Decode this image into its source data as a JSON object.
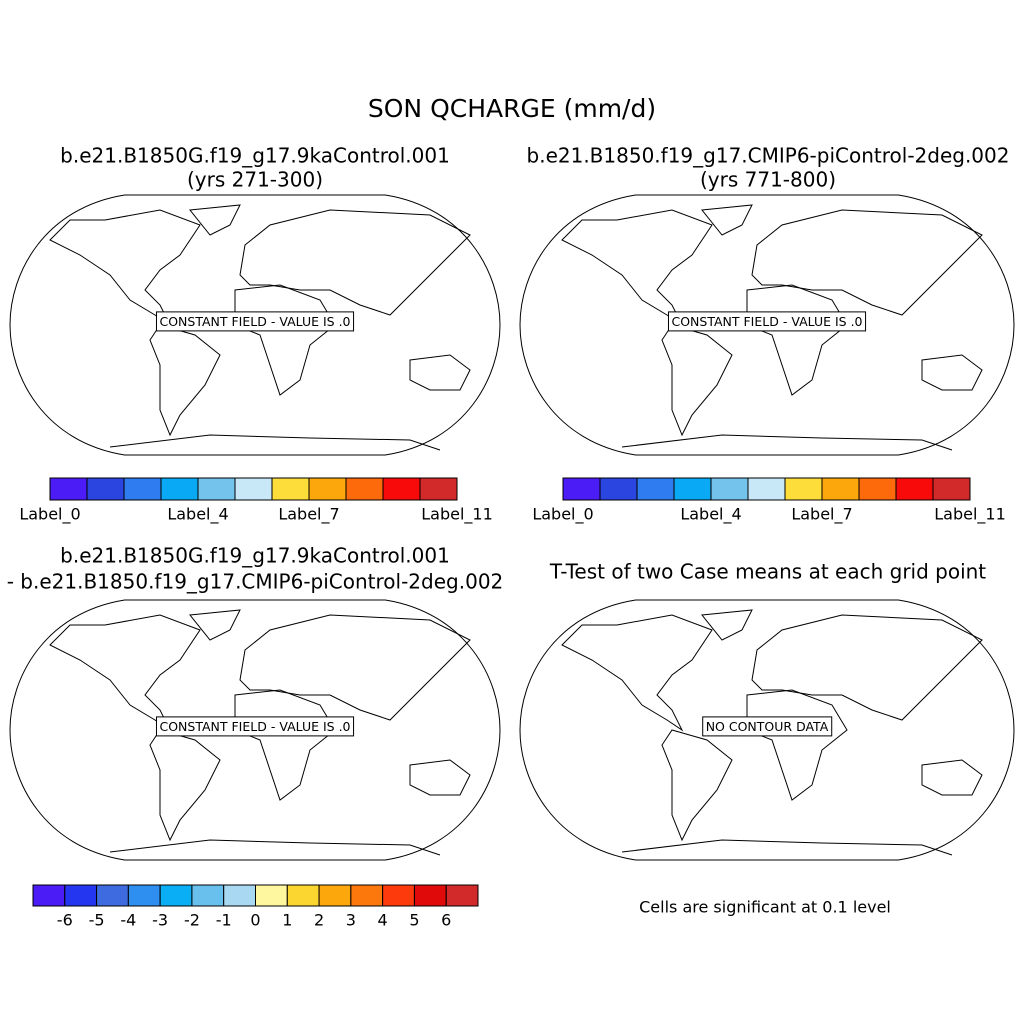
{
  "title": "SON QCHARGE (mm/d)",
  "panels": [
    {
      "title_lines": [
        "b.e21.B1850G.f19_g17.9kaControl.001",
        "(yrs 271-300)"
      ],
      "map_label": "CONSTANT FIELD - VALUE IS .0"
    },
    {
      "title_lines": [
        "b.e21.B1850.f19_g17.CMIP6-piControl-2deg.002",
        "(yrs 771-800)"
      ],
      "map_label": "CONSTANT FIELD - VALUE IS .0"
    },
    {
      "title_lines": [
        "b.e21.B1850G.f19_g17.9kaControl.001",
        "- b.e21.B1850.f19_g17.CMIP6-piControl-2deg.002"
      ],
      "map_label": "CONSTANT FIELD - VALUE IS .0"
    },
    {
      "title_lines": [
        "T-Test of two Case means at each grid point"
      ],
      "map_label": "NO CONTOUR DATA"
    }
  ],
  "colorbars": [
    {
      "colors": [
        "#4b1cf5",
        "#2b45e0",
        "#2f7bf0",
        "#0aa9f5",
        "#74c3ec",
        "#c8e8f8",
        "#fcdd3a",
        "#fca80c",
        "#fc6a0c",
        "#f80a0a",
        "#d22a2a"
      ],
      "labels": [
        "Label_0",
        null,
        null,
        null,
        "Label_4",
        null,
        null,
        "Label_7",
        null,
        null,
        null,
        "Label_11"
      ]
    },
    {
      "colors": [
        "#4b1cf5",
        "#2b45e0",
        "#2f7bf0",
        "#0aa9f5",
        "#74c3ec",
        "#c8e8f8",
        "#fcdd3a",
        "#fca80c",
        "#fc6a0c",
        "#f80a0a",
        "#d22a2a"
      ],
      "labels": [
        "Label_0",
        null,
        null,
        null,
        "Label_4",
        null,
        null,
        "Label_7",
        null,
        null,
        null,
        "Label_11"
      ]
    },
    {
      "colors": [
        "#4b1cf5",
        "#2436f0",
        "#3f6be0",
        "#2f8ff0",
        "#0aaef5",
        "#6ac0ec",
        "#a9d8f2",
        "#fff6a0",
        "#fcd630",
        "#fca80c",
        "#fc780c",
        "#fc3a0c",
        "#e00a0a",
        "#d22a2a"
      ],
      "labels": [
        null,
        -6,
        -5,
        -4,
        -3,
        -2,
        -1,
        0,
        1,
        2,
        3,
        4,
        5,
        6,
        null
      ]
    }
  ],
  "bottom_note": "Cells are significant at 0.1 level"
}
